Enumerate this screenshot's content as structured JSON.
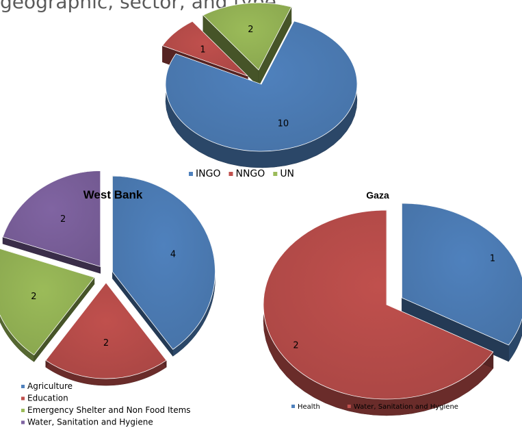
{
  "header": {
    "text": "geographic, sector, and type"
  },
  "chart_data": [
    {
      "type": "pie",
      "title": "",
      "categories": [
        "INGO",
        "NNGO",
        "UN"
      ],
      "values": [
        10,
        1,
        2
      ],
      "colors": [
        "#4f81bd",
        "#c0504d",
        "#9bbb59"
      ],
      "labels": [
        "10",
        "1",
        "2"
      ],
      "legend_position": "bottom"
    },
    {
      "type": "pie",
      "title": "West Bank",
      "categories": [
        "Agriculture",
        "Education",
        "Emergency Shelter and Non Food Items",
        "Water, Sanitation and Hygiene"
      ],
      "values": [
        4,
        2,
        2,
        2
      ],
      "colors": [
        "#4f81bd",
        "#c0504d",
        "#9bbb59",
        "#8064a2"
      ],
      "labels": [
        "4",
        "2",
        "2",
        "2"
      ],
      "legend_position": "bottom"
    },
    {
      "type": "pie",
      "title": "Gaza",
      "categories": [
        "Health",
        "Water, Sanitation and Hygiene"
      ],
      "values": [
        1,
        2
      ],
      "colors": [
        "#4f81bd",
        "#c0504d"
      ],
      "labels": [
        "1",
        "2"
      ],
      "legend_position": "bottom"
    }
  ]
}
